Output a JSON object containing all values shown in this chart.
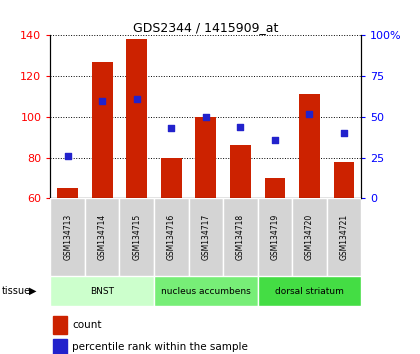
{
  "title": "GDS2344 / 1415909_at",
  "samples": [
    "GSM134713",
    "GSM134714",
    "GSM134715",
    "GSM134716",
    "GSM134717",
    "GSM134718",
    "GSM134719",
    "GSM134720",
    "GSM134721"
  ],
  "counts": [
    65,
    127,
    138,
    80,
    100,
    86,
    70,
    111,
    78
  ],
  "percentile_ranks_pct": [
    26,
    60,
    61,
    43,
    50,
    44,
    36,
    52,
    40
  ],
  "ylim_left": [
    60,
    140
  ],
  "ylim_right": [
    0,
    100
  ],
  "yticks_left": [
    60,
    80,
    100,
    120,
    140
  ],
  "yticks_right": [
    0,
    25,
    50,
    75,
    100
  ],
  "yticklabels_right": [
    "0",
    "25",
    "50",
    "75",
    "100%"
  ],
  "bar_color": "#cc2200",
  "dot_color": "#2222cc",
  "bar_bottom": 60,
  "tissue_groups": [
    {
      "label": "BNST",
      "start": 0,
      "end": 3,
      "color": "#ccffcc"
    },
    {
      "label": "nucleus accumbens",
      "start": 3,
      "end": 6,
      "color": "#77ee77"
    },
    {
      "label": "dorsal striatum",
      "start": 6,
      "end": 9,
      "color": "#44dd44"
    }
  ],
  "legend_count_label": "count",
  "legend_pct_label": "percentile rank within the sample",
  "tissue_label": "tissue",
  "bar_width": 0.6
}
